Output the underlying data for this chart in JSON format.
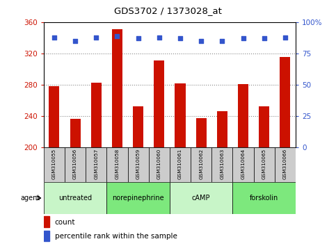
{
  "title": "GDS3702 / 1373028_at",
  "samples": [
    "GSM310055",
    "GSM310056",
    "GSM310057",
    "GSM310058",
    "GSM310059",
    "GSM310060",
    "GSM310061",
    "GSM310062",
    "GSM310063",
    "GSM310064",
    "GSM310065",
    "GSM310066"
  ],
  "counts": [
    278,
    237,
    283,
    351,
    253,
    311,
    282,
    238,
    246,
    281,
    253,
    316
  ],
  "percentiles": [
    88,
    85,
    88,
    89,
    87,
    88,
    87,
    85,
    85,
    87,
    87,
    88
  ],
  "agents": [
    {
      "label": "untreated",
      "start": 0,
      "end": 3,
      "color": "#c8f5c8"
    },
    {
      "label": "norepinephrine",
      "start": 3,
      "end": 6,
      "color": "#7de87d"
    },
    {
      "label": "cAMP",
      "start": 6,
      "end": 9,
      "color": "#c8f5c8"
    },
    {
      "label": "forskolin",
      "start": 9,
      "end": 12,
      "color": "#7de87d"
    }
  ],
  "ylim_left": [
    200,
    360
  ],
  "ylim_right": [
    0,
    100
  ],
  "yticks_left": [
    200,
    240,
    280,
    320,
    360
  ],
  "yticks_right": [
    0,
    25,
    50,
    75,
    100
  ],
  "bar_color": "#cc1100",
  "dot_color": "#3355cc",
  "left_tick_color": "#cc1100",
  "right_tick_color": "#3355cc",
  "grid_color": "#888888",
  "sample_bg_color": "#cccccc",
  "agent_label": "agent",
  "legend_count": "count",
  "legend_percentile": "percentile rank within the sample",
  "bar_width": 0.5
}
